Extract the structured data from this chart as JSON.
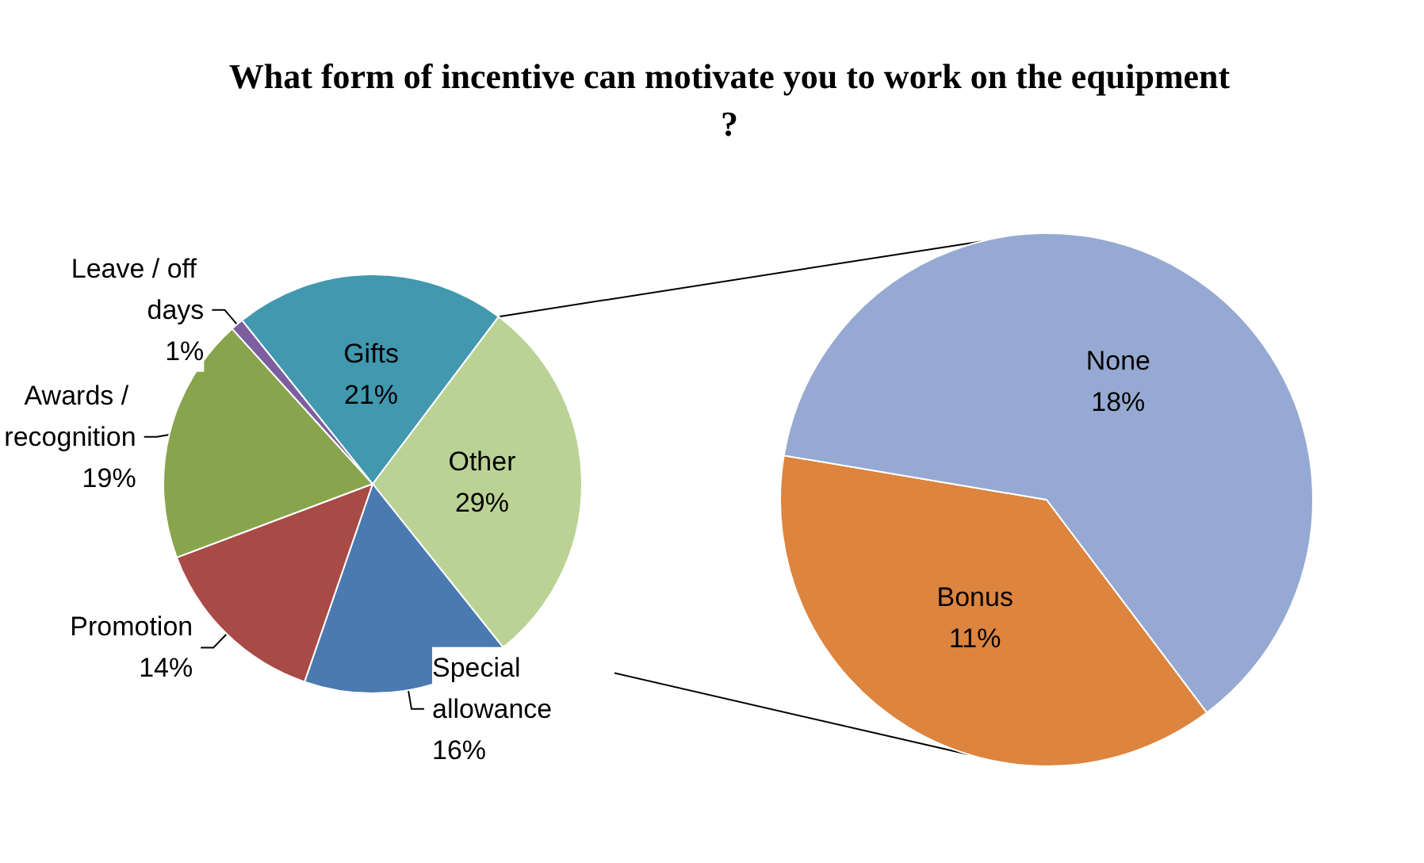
{
  "chart_data": [
    {
      "type": "pie",
      "title": "What form of incentive can motivate you to work on the equipment?",
      "categories": [
        "Other",
        "Special allowance",
        "Promotion",
        "Awards / recognition",
        "Leave / off days",
        "Gifts"
      ],
      "values": [
        29,
        16,
        14,
        19,
        1,
        21
      ],
      "value_labels": [
        "29%",
        "16%",
        "14%",
        "19%",
        "1%",
        "21%"
      ],
      "colors": [
        "#bbd295",
        "#4a7ab0",
        "#a84a46",
        "#88a54e",
        "#7d5fa0",
        "#4198af"
      ]
    },
    {
      "type": "pie",
      "categories": [
        "Bonus",
        "None"
      ],
      "values": [
        11,
        18
      ],
      "value_labels": [
        "11%",
        "18%"
      ],
      "colors": [
        "#dd843e",
        "#95a9d2"
      ]
    }
  ]
}
